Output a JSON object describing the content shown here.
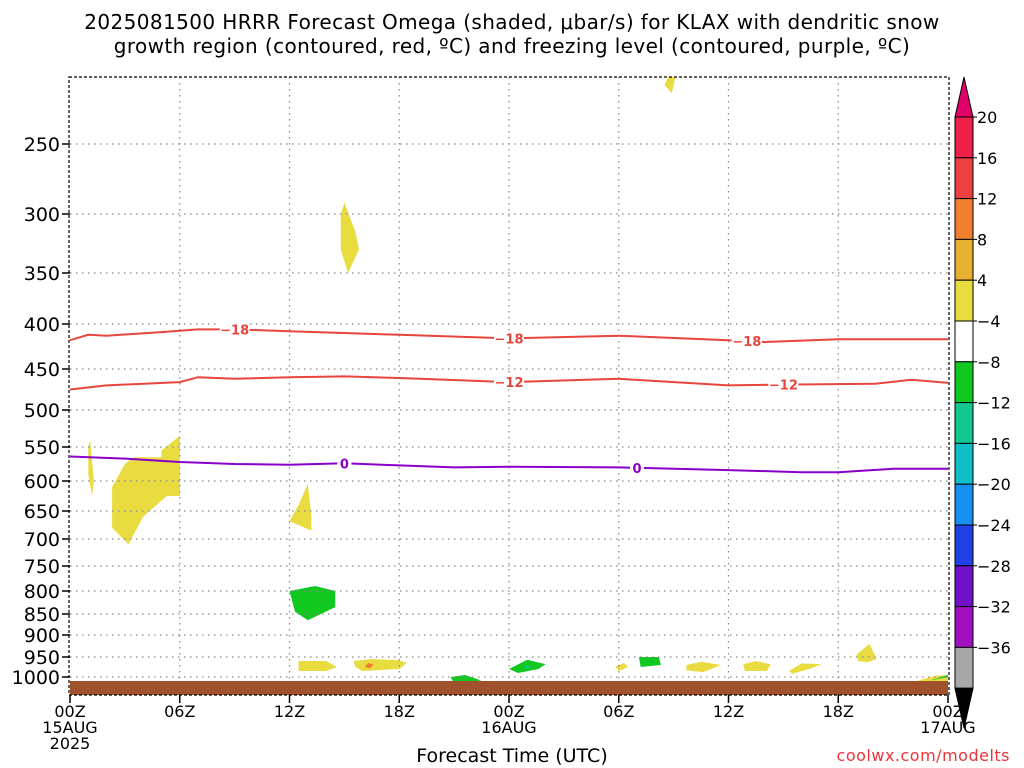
{
  "title_line1": "2025081500 HRRR Forecast Omega (shaded, μbar/s) for KLAX with dendritic snow",
  "title_line2": "growth region (contoured, red, ºC) and freezing level (contoured, purple, ºC)",
  "credit": "coolwx.com/modelts",
  "colors": {
    "dendritic_contour": "#e8453c",
    "freezing_contour": "#8b00c8",
    "ground": "#a0522d",
    "grid": "#888888"
  },
  "chart_data": {
    "type": "heatmap",
    "xlabel": "Forecast Time (UTC)",
    "ylabel": "",
    "x_ticks": [
      {
        "hour": 0,
        "labels": [
          "00Z",
          "15AUG",
          "2025"
        ]
      },
      {
        "hour": 6,
        "labels": [
          "06Z"
        ]
      },
      {
        "hour": 12,
        "labels": [
          "12Z"
        ]
      },
      {
        "hour": 18,
        "labels": [
          "18Z"
        ]
      },
      {
        "hour": 24,
        "labels": [
          "00Z",
          "16AUG"
        ]
      },
      {
        "hour": 30,
        "labels": [
          "06Z"
        ]
      },
      {
        "hour": 36,
        "labels": [
          "12Z"
        ]
      },
      {
        "hour": 42,
        "labels": [
          "18Z"
        ]
      },
      {
        "hour": 48,
        "labels": [
          "00Z",
          "17AUG"
        ]
      }
    ],
    "y_ticks": [
      250,
      300,
      350,
      400,
      450,
      500,
      550,
      600,
      650,
      700,
      750,
      800,
      850,
      900,
      950,
      1000
    ],
    "xlim": [
      0,
      48
    ],
    "ylim": [
      1015,
      200
    ],
    "colorbar": {
      "labels": [
        "20",
        "16",
        "12",
        "8",
        "4",
        "−4",
        "−8",
        "−12",
        "−16",
        "−20",
        "−24",
        "−28",
        "−32",
        "−36"
      ],
      "colors": [
        "#ee2048",
        "#ee4040",
        "#f08030",
        "#e8b030",
        "#e8dc40",
        "#ffffff",
        "#10c820",
        "#10c890",
        "#10c0c8",
        "#1890f0",
        "#2040e8",
        "#7010c8",
        "#a010c0",
        "#a8a8a8"
      ],
      "top_color": "#e0006a",
      "bottom_color": "#000000"
    },
    "contours": [
      {
        "label": "−18",
        "color": "#e8453c",
        "label_hours": [
          9,
          24,
          37
        ],
        "points": [
          [
            0,
            418
          ],
          [
            1,
            412
          ],
          [
            2,
            413
          ],
          [
            5,
            409
          ],
          [
            7,
            406
          ],
          [
            9,
            406
          ],
          [
            12,
            408
          ],
          [
            18,
            412
          ],
          [
            24,
            416
          ],
          [
            30,
            413
          ],
          [
            36,
            418
          ],
          [
            38,
            420
          ],
          [
            42,
            417
          ],
          [
            48,
            417
          ]
        ]
      },
      {
        "label": "−12",
        "color": "#e8453c",
        "label_hours": [
          24,
          39
        ],
        "points": [
          [
            0,
            475
          ],
          [
            2,
            470
          ],
          [
            6,
            466
          ],
          [
            7,
            460
          ],
          [
            9,
            462
          ],
          [
            12,
            460
          ],
          [
            15,
            459
          ],
          [
            18,
            461
          ],
          [
            24,
            466
          ],
          [
            30,
            462
          ],
          [
            36,
            470
          ],
          [
            39,
            469
          ],
          [
            44,
            468
          ],
          [
            46,
            463
          ],
          [
            48,
            467
          ]
        ]
      },
      {
        "label": "0",
        "color": "#8b00c8",
        "label_hours": [
          15,
          31
        ],
        "points": [
          [
            0,
            564
          ],
          [
            3,
            567
          ],
          [
            6,
            572
          ],
          [
            9,
            575
          ],
          [
            12,
            576
          ],
          [
            15,
            574
          ],
          [
            18,
            577
          ],
          [
            21,
            580
          ],
          [
            24,
            579
          ],
          [
            30,
            580
          ],
          [
            36,
            584
          ],
          [
            40,
            587
          ],
          [
            42,
            587
          ],
          [
            45,
            582
          ],
          [
            48,
            582
          ]
        ]
      }
    ],
    "shaded_regions": [
      {
        "value": 4,
        "color": "#e8dc40",
        "points": [
          [
            32.7,
            200
          ],
          [
            33.1,
            200
          ],
          [
            32.9,
            212
          ],
          [
            32.5,
            206
          ]
        ]
      },
      {
        "value": 4,
        "color": "#e8dc40",
        "points": [
          [
            15,
            292
          ],
          [
            15.6,
            315
          ],
          [
            15.8,
            330
          ],
          [
            15.2,
            350
          ],
          [
            14.8,
            330
          ],
          [
            14.8,
            300
          ]
        ]
      },
      {
        "value": 4,
        "color": "#e8dc40",
        "points": [
          [
            1.1,
            540
          ],
          [
            1.3,
            600
          ],
          [
            1.2,
            625
          ],
          [
            1,
            590
          ],
          [
            1,
            550
          ]
        ]
      },
      {
        "value": 4,
        "color": "#e8dc40",
        "points": [
          [
            3.5,
            565
          ],
          [
            5,
            565
          ],
          [
            5,
            555
          ],
          [
            6,
            535
          ],
          [
            6,
            625
          ],
          [
            5.3,
            625
          ],
          [
            4,
            660
          ],
          [
            3.2,
            710
          ],
          [
            2.3,
            680
          ],
          [
            2.3,
            610
          ],
          [
            3,
            575
          ]
        ]
      },
      {
        "value": 4,
        "color": "#e8dc40",
        "points": [
          [
            13,
            605
          ],
          [
            13.2,
            660
          ],
          [
            13.2,
            685
          ],
          [
            12,
            668
          ],
          [
            12.5,
            640
          ]
        ]
      },
      {
        "value": -4,
        "color": "#10c820",
        "points": [
          [
            12,
            800
          ],
          [
            13.4,
            790
          ],
          [
            14.5,
            800
          ],
          [
            14.5,
            835
          ],
          [
            13,
            865
          ],
          [
            12.3,
            845
          ]
        ]
      },
      {
        "value": 4,
        "color": "#e8dc40",
        "points": [
          [
            12.5,
            960
          ],
          [
            14,
            960
          ],
          [
            14.6,
            975
          ],
          [
            14,
            985
          ],
          [
            12.5,
            985
          ]
        ]
      },
      {
        "value": 4,
        "color": "#e8dc40",
        "points": [
          [
            15.5,
            960
          ],
          [
            16.5,
            955
          ],
          [
            18,
            958
          ],
          [
            18.4,
            965
          ],
          [
            18,
            980
          ],
          [
            16,
            985
          ],
          [
            15.6,
            975
          ]
        ]
      },
      {
        "value": 12,
        "color": "#f08030",
        "points": [
          [
            16.3,
            965
          ],
          [
            16.6,
            968
          ],
          [
            16.4,
            978
          ],
          [
            16.1,
            975
          ]
        ]
      },
      {
        "value": -4,
        "color": "#10c820",
        "points": [
          [
            20.8,
            1000
          ],
          [
            21.6,
            995
          ],
          [
            22.5,
            1003
          ],
          [
            21,
            1005
          ]
        ]
      },
      {
        "value": -4,
        "color": "#10c820",
        "points": [
          [
            24,
            980
          ],
          [
            25,
            957
          ],
          [
            26,
            968
          ],
          [
            25.6,
            980
          ],
          [
            24.5,
            990
          ]
        ]
      },
      {
        "value": -8,
        "color": "#10c890",
        "points": [
          [
            24.9,
            970
          ],
          [
            25.2,
            975
          ],
          [
            24.9,
            980
          ]
        ]
      },
      {
        "value": 4,
        "color": "#e8dc40",
        "points": [
          [
            29.8,
            973
          ],
          [
            30.3,
            965
          ],
          [
            30.5,
            975
          ],
          [
            30,
            985
          ]
        ]
      },
      {
        "value": -4,
        "color": "#10c820",
        "points": [
          [
            31.1,
            950
          ],
          [
            32.2,
            950
          ],
          [
            32.3,
            970
          ],
          [
            31.2,
            975
          ]
        ]
      },
      {
        "value": 4,
        "color": "#e8dc40",
        "points": [
          [
            33.7,
            970
          ],
          [
            34.5,
            962
          ],
          [
            35.6,
            970
          ],
          [
            34.6,
            988
          ],
          [
            33.7,
            983
          ]
        ]
      },
      {
        "value": 4,
        "color": "#e8dc40",
        "points": [
          [
            36.8,
            968
          ],
          [
            37.5,
            960
          ],
          [
            38.3,
            968
          ],
          [
            38.1,
            985
          ],
          [
            36.9,
            985
          ]
        ]
      },
      {
        "value": 4,
        "color": "#e8dc40",
        "points": [
          [
            39.3,
            985
          ],
          [
            40,
            966
          ],
          [
            41.1,
            968
          ],
          [
            40.4,
            980
          ],
          [
            39.5,
            992
          ]
        ]
      },
      {
        "value": 4,
        "color": "#e8dc40",
        "points": [
          [
            43,
            945
          ],
          [
            43.7,
            920
          ],
          [
            44.1,
            955
          ],
          [
            43.6,
            963
          ],
          [
            43.1,
            960
          ]
        ]
      },
      {
        "value": 4,
        "color": "#e8dc40",
        "points": [
          [
            45.9,
            1005
          ],
          [
            47.3,
            997
          ],
          [
            48,
            995
          ],
          [
            48,
            1008
          ],
          [
            45.9,
            1008
          ]
        ]
      },
      {
        "value": -4,
        "color": "#10c820",
        "points": [
          [
            47,
            1003
          ],
          [
            48,
            995
          ],
          [
            48,
            1000
          ]
        ]
      }
    ]
  }
}
